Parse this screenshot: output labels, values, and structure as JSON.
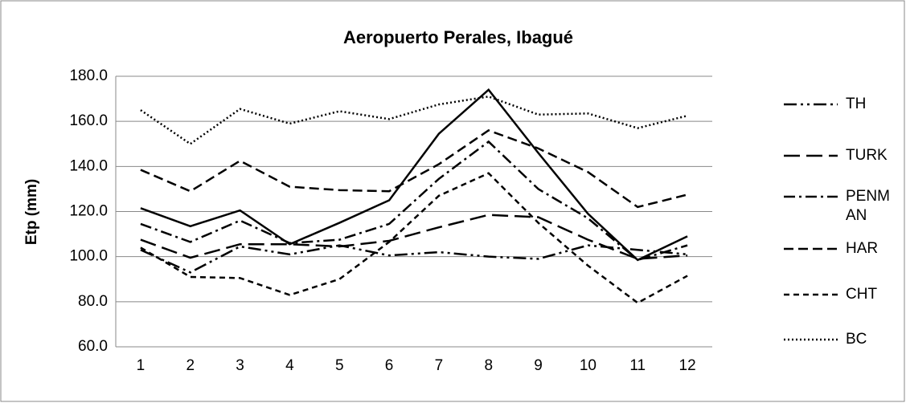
{
  "chart_data": {
    "type": "line",
    "title": "Aeropuerto Perales, Ibagué",
    "y_label": "Etp (mm)",
    "categories": [
      "1",
      "2",
      "3",
      "4",
      "5",
      "6",
      "7",
      "8",
      "9",
      "10",
      "11",
      "12"
    ],
    "ylim": [
      60,
      180
    ],
    "yticks": [
      {
        "value": 60,
        "label": "60.0"
      },
      {
        "value": 80,
        "label": "80.0"
      },
      {
        "value": 100,
        "label": "100.0"
      },
      {
        "value": 120,
        "label": "120.0"
      },
      {
        "value": 140,
        "label": "140.0"
      },
      {
        "value": 160,
        "label": "160.0"
      },
      {
        "value": 180,
        "label": "180.0"
      }
    ],
    "grid": true,
    "legend": "right",
    "series": [
      {
        "color": "#000000",
        "values": [
          121.5,
          113.5,
          120.5,
          105.5,
          115,
          125,
          154.5,
          174,
          146,
          119,
          98.5,
          109
        ]
      },
      {
        "name": "TH",
        "color": "#000000",
        "values": [
          103,
          93,
          104.5,
          101,
          105,
          100.5,
          102,
          100,
          99,
          105,
          103,
          101
        ]
      },
      {
        "name": "TURK",
        "color": "#000000",
        "values": [
          107.5,
          99.5,
          105.5,
          105.5,
          104.5,
          107,
          113,
          118.5,
          117.5,
          107.5,
          99,
          100.5
        ]
      },
      {
        "name": "PENMAN",
        "color": "#000000",
        "values": [
          114.5,
          106.5,
          116,
          106,
          107.5,
          114.5,
          134.5,
          151,
          130,
          117,
          98.5,
          105
        ]
      },
      {
        "name": "HAR",
        "color": "#000000",
        "values": [
          138.5,
          129,
          142.5,
          131,
          129.5,
          129,
          141,
          156,
          148,
          137.5,
          122,
          127.5
        ]
      },
      {
        "name": "CHT",
        "color": "#000000",
        "values": [
          104,
          91,
          90.5,
          83,
          90,
          106.5,
          127,
          137,
          115,
          96,
          79.5,
          91.5
        ]
      },
      {
        "name": "BC",
        "color": "#000000",
        "values": [
          165,
          150,
          165.5,
          159,
          164.5,
          161,
          167.5,
          171,
          163,
          163.5,
          157,
          162.5
        ]
      }
    ]
  }
}
